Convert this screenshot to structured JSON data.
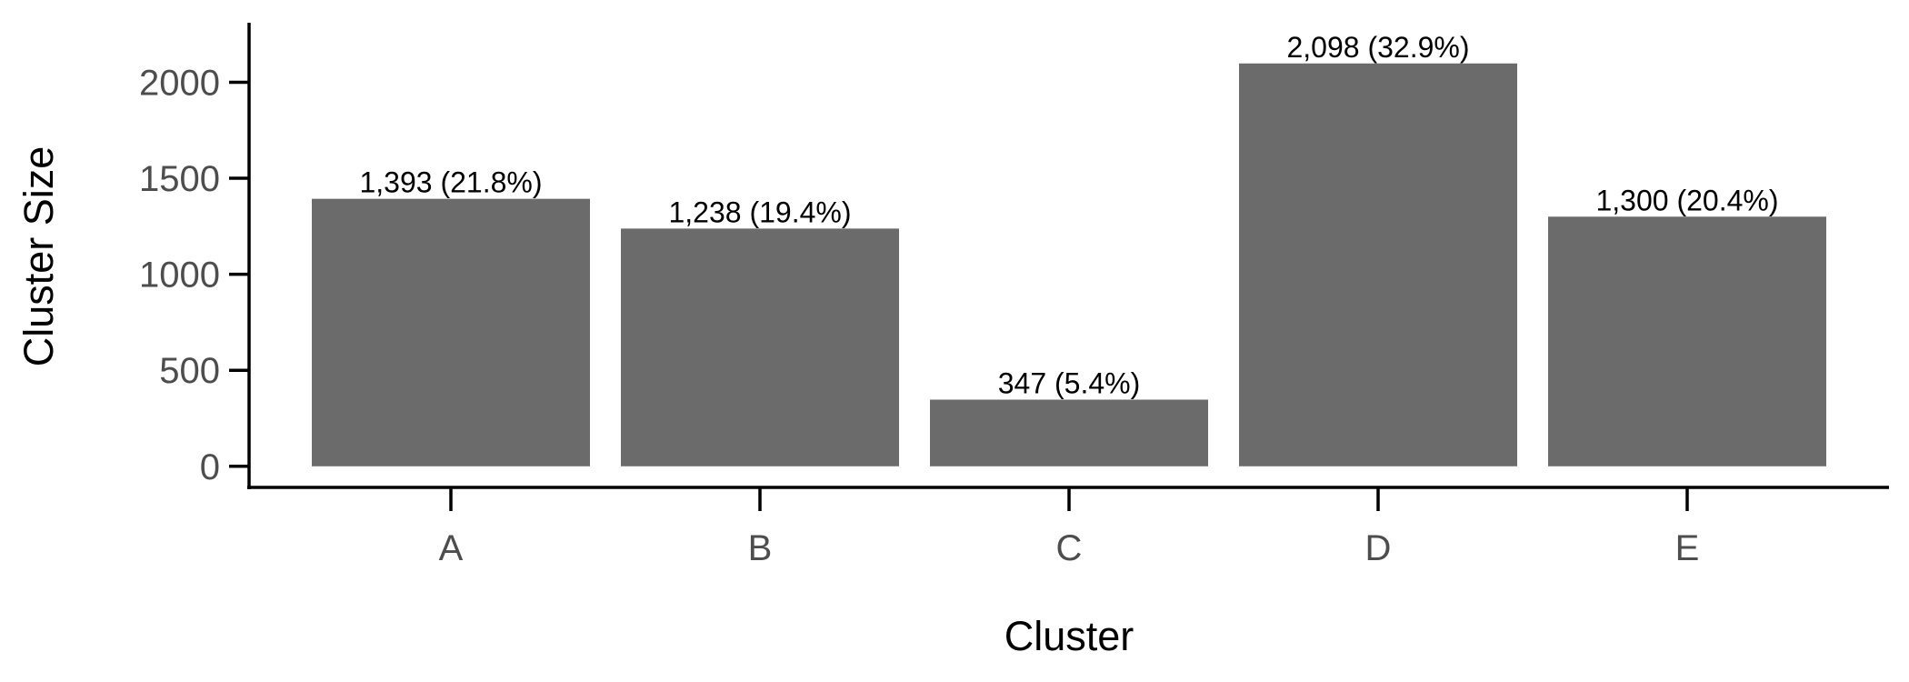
{
  "chart_data": {
    "type": "bar",
    "title": "",
    "xlabel": "Cluster",
    "ylabel": "Cluster Size",
    "categories": [
      "A",
      "B",
      "C",
      "D",
      "E"
    ],
    "values": [
      1393,
      1238,
      347,
      2098,
      1300
    ],
    "bar_labels": [
      "1,393 (21.8%)",
      "1,238 (19.4%)",
      "347 (5.4%)",
      "2,098 (32.9%)",
      "1,300 (20.4%)"
    ],
    "yticks": [
      0,
      500,
      1000,
      1500,
      2000
    ],
    "ytick_labels": [
      "0",
      "500",
      "1000",
      "1500",
      "2000"
    ],
    "ylim": [
      -110,
      2310
    ],
    "grid": false,
    "legend": "none",
    "bar_color": "#6b6b6b",
    "axis_color": "#000000",
    "tick_label_color": "#4d4d4d"
  }
}
